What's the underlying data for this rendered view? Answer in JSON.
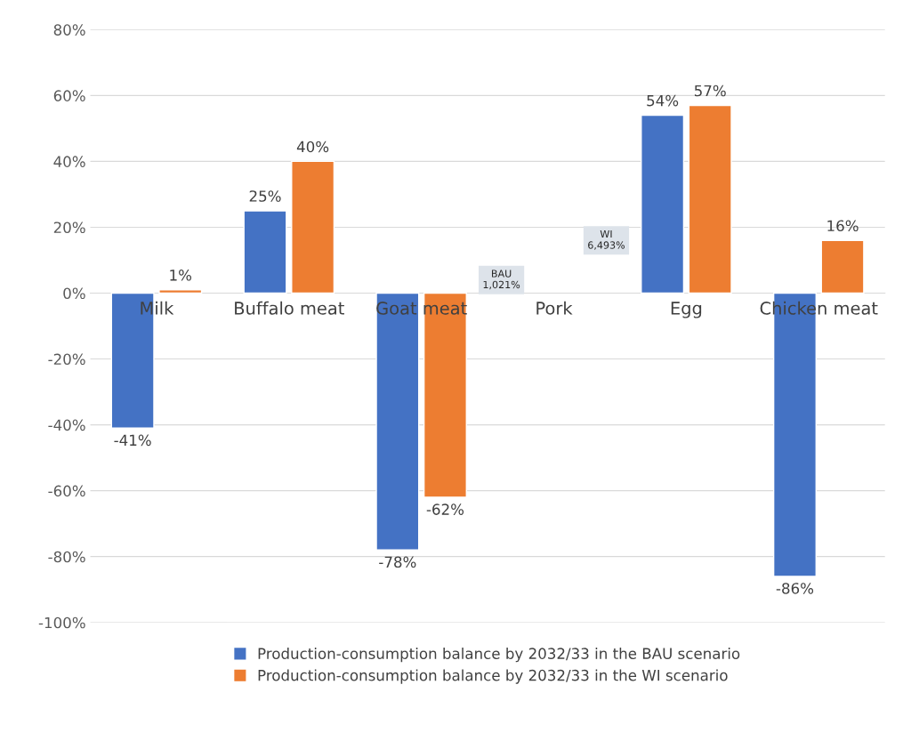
{
  "chart_data": {
    "type": "bar",
    "categories": [
      "Milk",
      "Buffalo meat",
      "Goat meat",
      "Pork",
      "Egg",
      "Chicken meat"
    ],
    "series": [
      {
        "name": "Production-consumption balance by 2032/33 in the BAU scenario",
        "color": "#4472c4",
        "values": [
          -41,
          25,
          -78,
          null,
          54,
          -86
        ],
        "value_labels": [
          "-41%",
          "25%",
          "-78%",
          "BAU\n1,021%",
          "54%",
          "-86%"
        ]
      },
      {
        "name": "Production-consumption balance by 2032/33 in the WI scenario",
        "color": "#ed7d31",
        "values": [
          1,
          40,
          -62,
          null,
          57,
          16
        ],
        "value_labels": [
          "1%",
          "40%",
          "-62%",
          "WI\n6,493%",
          "57%",
          "16%"
        ]
      }
    ],
    "ylim": [
      -100,
      80
    ],
    "yticks": [
      {
        "value": -100,
        "label": "-100%"
      },
      {
        "value": -80,
        "label": "-80%"
      },
      {
        "value": -60,
        "label": "-60%"
      },
      {
        "value": -40,
        "label": "-40%"
      },
      {
        "value": -20,
        "label": "-20%"
      },
      {
        "value": 0,
        "label": "0%"
      },
      {
        "value": 20,
        "label": "20%"
      },
      {
        "value": 40,
        "label": "40%"
      },
      {
        "value": 60,
        "label": "60%"
      },
      {
        "value": 80,
        "label": "80%"
      }
    ],
    "grid": "y",
    "legend": "bottom"
  }
}
